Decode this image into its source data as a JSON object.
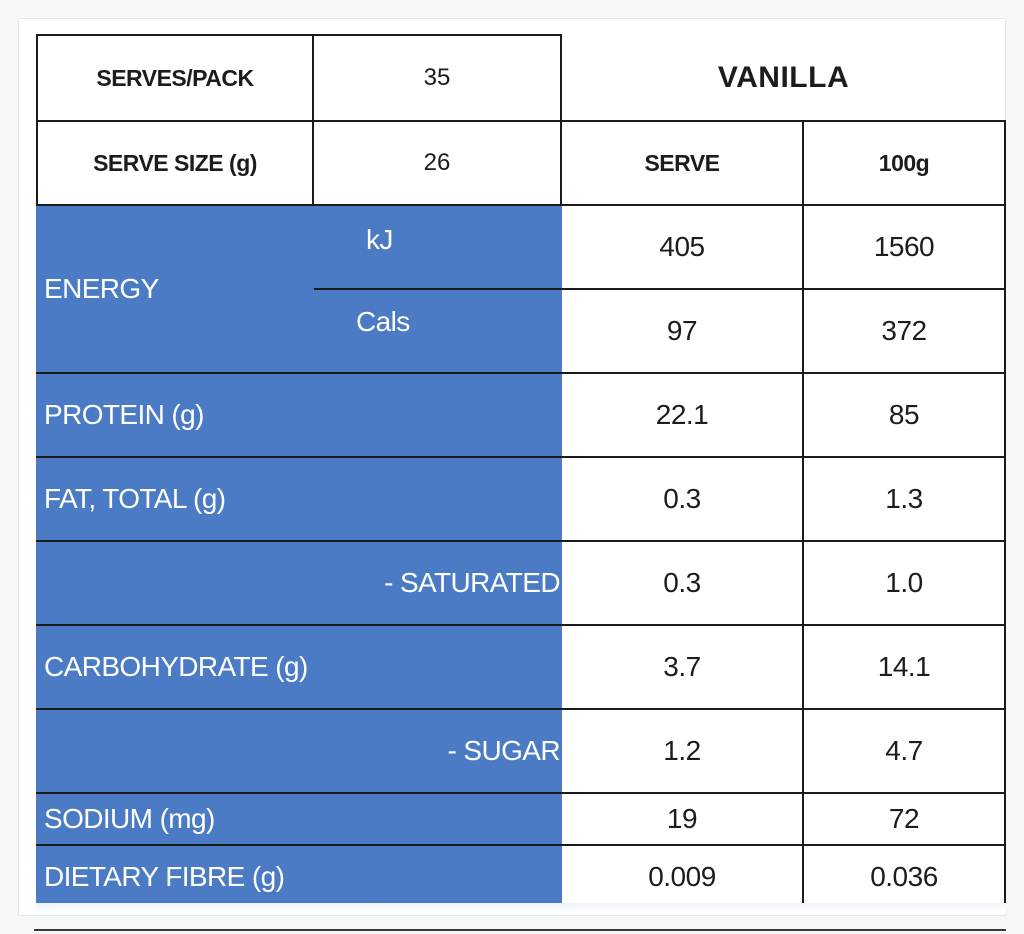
{
  "header": {
    "serves_per_pack_label": "SERVES/PACK",
    "serves_per_pack_value": "35",
    "serve_size_label": "SERVE SIZE (g)",
    "serve_size_value": "26",
    "flavour": "VANILLA",
    "col_serve": "SERVE",
    "col_100g": "100g"
  },
  "energy": {
    "label": "ENERGY",
    "kj_label": "kJ",
    "cals_label": "Cals",
    "kj_serve": "405",
    "kj_100g": "1560",
    "cals_serve": "97",
    "cals_100g": "372"
  },
  "rows": [
    {
      "label": "PROTEIN (g)",
      "serve": "22.1",
      "per100g": "85"
    },
    {
      "label": "FAT, TOTAL (g)",
      "serve": "0.3",
      "per100g": "1.3"
    },
    {
      "label": "- SATURATED",
      "serve": "0.3",
      "per100g": "1.0"
    },
    {
      "label": "CARBOHYDRATE (g)",
      "serve": "3.7",
      "per100g": "14.1"
    },
    {
      "label": "- SUGAR",
      "serve": "1.2",
      "per100g": "4.7"
    },
    {
      "label": "SODIUM (mg)",
      "serve": "19",
      "per100g": "72"
    },
    {
      "label": "DIETARY FIBRE (g)",
      "serve": "0.009",
      "per100g": "0.036"
    }
  ],
  "colors": {
    "label_blue": "#4a7bc4",
    "border": "#1b1b1b"
  }
}
